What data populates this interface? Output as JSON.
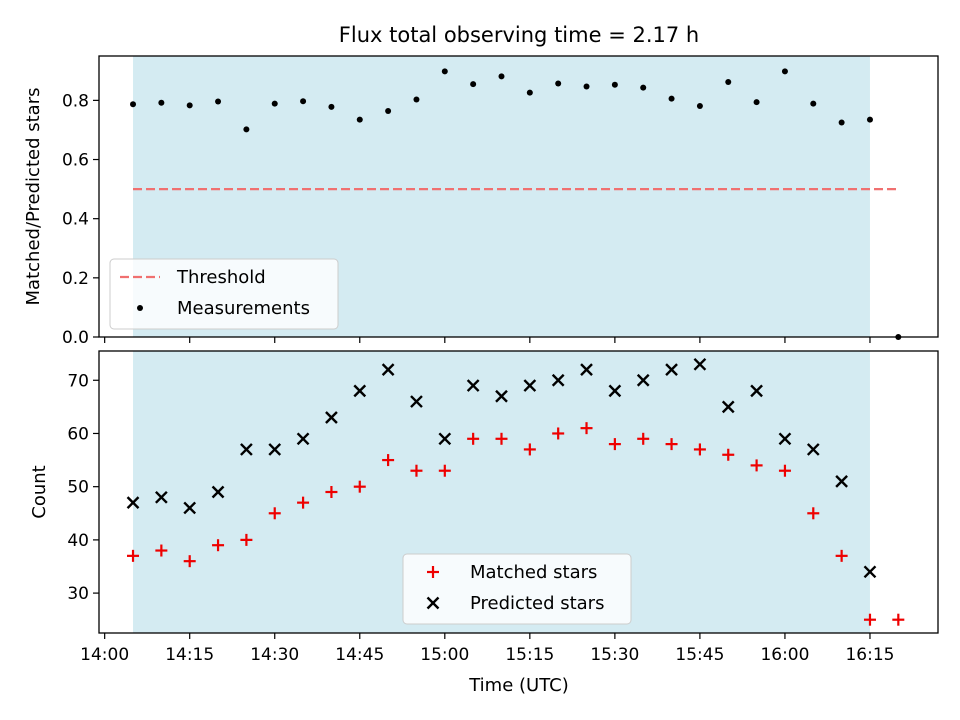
{
  "chart_data": {
    "title": "Flux total observing time = 2.17 h",
    "xlabel": "Time (UTC)",
    "x_tick_labels": [
      "14:00",
      "14:15",
      "14:30",
      "14:45",
      "15:00",
      "15:15",
      "15:30",
      "15:45",
      "16:00",
      "16:15"
    ],
    "x_tick_minutes": [
      840,
      855,
      870,
      885,
      900,
      915,
      930,
      945,
      960,
      975
    ],
    "xlim_minutes": [
      839,
      987
    ],
    "shade_range_minutes": [
      845,
      975
    ],
    "times": [
      "14:05",
      "14:10",
      "14:15",
      "14:20",
      "14:25",
      "14:30",
      "14:35",
      "14:40",
      "14:45",
      "14:50",
      "14:55",
      "15:00",
      "15:05",
      "15:10",
      "15:15",
      "15:20",
      "15:25",
      "15:30",
      "15:35",
      "15:40",
      "15:45",
      "15:50",
      "15:55",
      "16:00",
      "16:05",
      "16:10",
      "16:15",
      "16:20"
    ],
    "time_minutes": [
      845,
      850,
      855,
      860,
      865,
      870,
      875,
      880,
      885,
      890,
      895,
      900,
      905,
      910,
      915,
      920,
      925,
      930,
      935,
      940,
      945,
      950,
      955,
      960,
      965,
      970,
      975,
      980
    ],
    "panels": [
      {
        "type": "scatter",
        "ylabel": "Matched/Predicted stars",
        "ylim": [
          0,
          0.95
        ],
        "y_ticks": [
          0,
          0.2,
          0.4,
          0.6,
          0.8
        ],
        "y_tick_labels": [
          "0.0",
          "0.2",
          "0.4",
          "0.6",
          "0.8"
        ],
        "threshold": {
          "name": "Threshold",
          "value": 0.5,
          "x_range_minutes": [
            845,
            980
          ],
          "color": "#f07070"
        },
        "series": [
          {
            "name": "Measurements",
            "marker": "dot",
            "color": "#000000",
            "values": [
              0.787,
              0.792,
              0.783,
              0.796,
              0.702,
              0.789,
              0.797,
              0.778,
              0.735,
              0.764,
              0.803,
              0.898,
              0.855,
              0.881,
              0.826,
              0.857,
              0.847,
              0.853,
              0.843,
              0.806,
              0.781,
              0.862,
              0.794,
              0.898,
              0.789,
              0.725,
              0.735,
              0.0
            ]
          }
        ],
        "legend": {
          "position": "lower-left",
          "entries": [
            "Threshold",
            "Measurements"
          ]
        }
      },
      {
        "type": "scatter",
        "ylabel": "Count",
        "ylim": [
          22.5,
          75.5
        ],
        "y_ticks": [
          30,
          40,
          50,
          60,
          70
        ],
        "y_tick_labels": [
          "30",
          "40",
          "50",
          "60",
          "70"
        ],
        "series": [
          {
            "name": "Matched stars",
            "marker": "plus",
            "color": "#ee0000",
            "values": [
              37,
              38,
              36,
              39,
              40,
              45,
              47,
              49,
              50,
              55,
              53,
              53,
              59,
              59,
              57,
              60,
              61,
              58,
              59,
              58,
              57,
              56,
              54,
              53,
              45,
              37,
              25,
              25
            ]
          },
          {
            "name": "Predicted stars",
            "marker": "x",
            "color": "#000000",
            "values": [
              47,
              48,
              46,
              49,
              57,
              57,
              59,
              63,
              68,
              72,
              66,
              59,
              69,
              67,
              69,
              70,
              72,
              68,
              70,
              72,
              73,
              65,
              68,
              59,
              57,
              51,
              34,
              null
            ]
          }
        ],
        "legend": {
          "position": "lower-center",
          "entries": [
            "Matched stars",
            "Predicted stars"
          ]
        }
      }
    ]
  }
}
